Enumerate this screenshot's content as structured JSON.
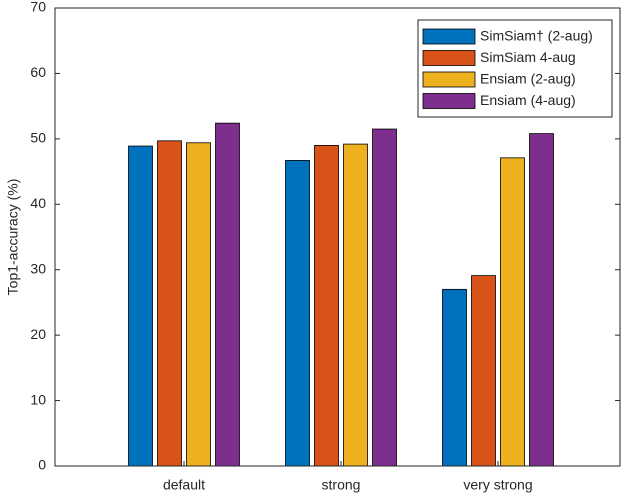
{
  "chart_data": {
    "type": "bar",
    "ylabel": "Top1-accuracy (%)",
    "categories": [
      "default",
      "strong",
      "very strong"
    ],
    "series": [
      {
        "name": "SimSiam† (2-aug)",
        "color": "#0072bd",
        "values": [
          48.9,
          46.7,
          27.0
        ]
      },
      {
        "name": "SimSiam 4-aug",
        "color": "#d95319",
        "values": [
          49.7,
          49.0,
          29.1
        ]
      },
      {
        "name": "Ensiam (2-aug)",
        "color": "#edb120",
        "values": [
          49.4,
          49.2,
          47.1
        ]
      },
      {
        "name": "Ensiam (4-aug)",
        "color": "#7e2f8e",
        "values": [
          52.4,
          51.5,
          50.8
        ]
      }
    ],
    "ylim": [
      0,
      70
    ],
    "yticks": [
      0,
      10,
      20,
      30,
      40,
      50,
      60,
      70
    ],
    "grid": false,
    "legend": "northeast"
  }
}
